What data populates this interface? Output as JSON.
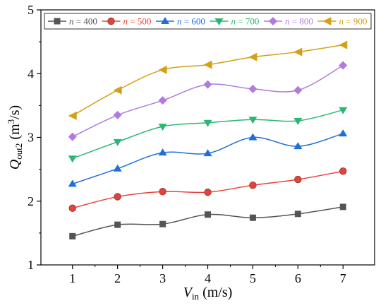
{
  "chart_data": {
    "type": "line",
    "title": "",
    "x": [
      1,
      2,
      3,
      4,
      5,
      6,
      7
    ],
    "xlim": [
      0.3,
      7.7
    ],
    "ylim": [
      1,
      5
    ],
    "xticks": [
      "1",
      "2",
      "3",
      "4",
      "5",
      "6",
      "7"
    ],
    "yticks": [
      "1",
      "2",
      "3",
      "4",
      "5"
    ],
    "xlabel": {
      "main": "V",
      "sub": "in",
      "rest": " (m/s)"
    },
    "ylabel": {
      "main": "Q",
      "sub": "out2",
      "rest": " (m",
      "sup": "3",
      "tail": "/s)"
    },
    "legend_position": "top",
    "grid": false,
    "series": [
      {
        "name": "n = 400",
        "name_var": "n",
        "name_rest": " = 400",
        "color": "#555555",
        "marker": "square",
        "values": [
          1.45,
          1.63,
          1.64,
          1.79,
          1.74,
          1.8,
          1.91
        ]
      },
      {
        "name": "n = 500",
        "name_var": "n",
        "name_rest": " = 500",
        "color": "#e8403a",
        "marker": "circle",
        "values": [
          1.89,
          2.07,
          2.15,
          2.14,
          2.25,
          2.34,
          2.47
        ]
      },
      {
        "name": "n = 600",
        "name_var": "n",
        "name_rest": " = 600",
        "color": "#1f6fd6",
        "marker": "triangle-up",
        "values": [
          2.27,
          2.51,
          2.76,
          2.75,
          3.0,
          2.86,
          3.06
        ]
      },
      {
        "name": "n = 700",
        "name_var": "n",
        "name_rest": " = 700",
        "color": "#2bb673",
        "marker": "triangle-down",
        "values": [
          2.67,
          2.93,
          3.17,
          3.23,
          3.28,
          3.26,
          3.43
        ]
      },
      {
        "name": "n = 800",
        "name_var": "n",
        "name_rest": " = 800",
        "color": "#b07ae0",
        "marker": "diamond",
        "values": [
          3.01,
          3.35,
          3.58,
          3.83,
          3.76,
          3.74,
          4.13
        ]
      },
      {
        "name": "n = 900",
        "name_var": "n",
        "name_rest": " = 900",
        "color": "#d4a017",
        "marker": "triangle-left",
        "values": [
          3.34,
          3.74,
          4.06,
          4.14,
          4.26,
          4.34,
          4.45
        ]
      }
    ]
  }
}
